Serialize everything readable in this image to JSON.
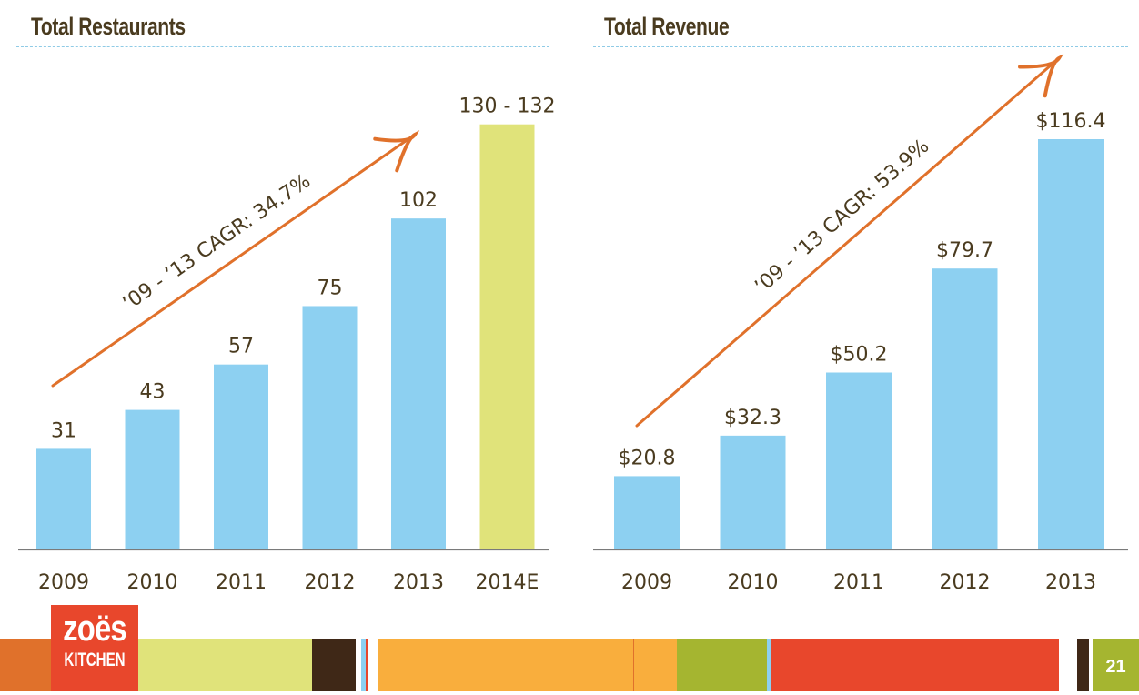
{
  "chart_data": [
    {
      "type": "bar",
      "title": "Total Restaurants",
      "xlabel": "",
      "ylabel": "",
      "categories": [
        "2009",
        "2010",
        "2011",
        "2012",
        "2013",
        "2014E"
      ],
      "values": [
        31,
        43,
        57,
        75,
        102,
        131
      ],
      "value_labels": [
        "31",
        "43",
        "57",
        "75",
        "102",
        "130 - 132"
      ],
      "estimate_range": {
        "category": "2014E",
        "low": 130,
        "high": 132
      },
      "bar_colors": [
        "#8dd0f1",
        "#8dd0f1",
        "#8dd0f1",
        "#8dd0f1",
        "#8dd0f1",
        "#e0e37a"
      ],
      "ylim": [
        0,
        134
      ],
      "grid": false,
      "annotation": {
        "text": "’09 - ’13 CAGR: 34.7%",
        "type": "arrow",
        "color": "#e0712b"
      }
    },
    {
      "type": "bar",
      "title": "Total Revenue",
      "xlabel": "",
      "ylabel": "",
      "categories": [
        "2009",
        "2010",
        "2011",
        "2012",
        "2013"
      ],
      "values": [
        20.8,
        32.3,
        50.2,
        79.7,
        116.4
      ],
      "value_labels": [
        "$20.8",
        "$32.3",
        "$50.2",
        "$79.7",
        "$116.4"
      ],
      "bar_colors": [
        "#8dd0f1",
        "#8dd0f1",
        "#8dd0f1",
        "#8dd0f1",
        "#8dd0f1"
      ],
      "ylim": [
        0,
        116.4
      ],
      "grid": false,
      "annotation": {
        "text": "’09 - ’13 CAGR: 53.9%",
        "type": "arrow",
        "color": "#e0712b"
      }
    }
  ],
  "header": {
    "left_title": "Total Restaurants",
    "right_title": "Total Revenue"
  },
  "footer": {
    "logo_line1": "zoës",
    "logo_line2": "KITCHEN",
    "page_number": "21",
    "stripe_colors": [
      "#e0712b",
      "#e0e37a",
      "#3f2817",
      "#8dd0f1",
      "#e8472c",
      "#f9ae3d",
      "#a5b530",
      "#e8472c"
    ]
  },
  "colors": {
    "text": "#4a3b1f",
    "bar": "#8dd0f1",
    "estimate_bar": "#e0e37a",
    "arrow": "#e0712b",
    "rule": "#8fcbe6"
  }
}
